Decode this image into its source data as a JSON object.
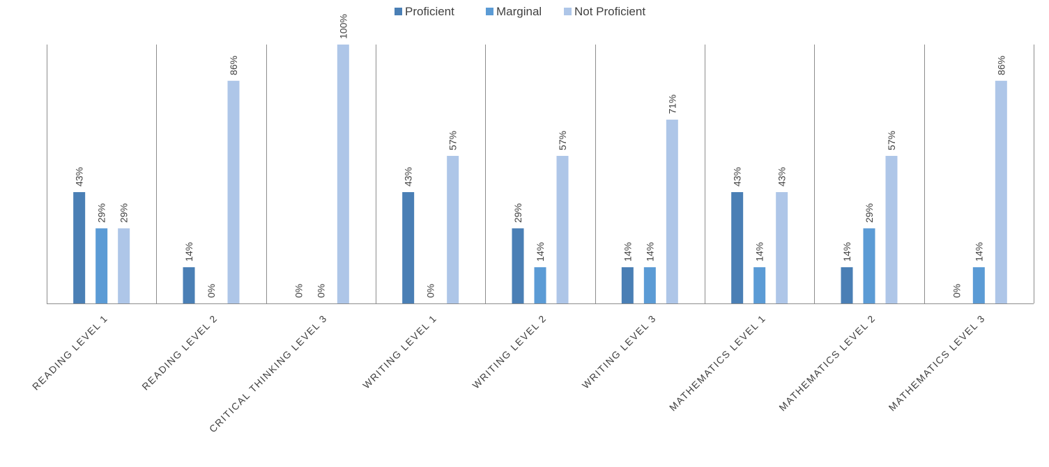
{
  "chart_data": {
    "type": "bar",
    "categories": [
      "READING LEVEL 1",
      "READING LEVEL 2",
      "CRITICAL THINKING LEVEL 3",
      "WRITING LEVEL 1",
      "WRITING LEVEL 2",
      "WRITING LEVEL 3",
      "MATHEMATICS LEVEL 1",
      "MATHEMATICS LEVEL 2",
      "MATHEMATICS LEVEL 3"
    ],
    "series": [
      {
        "name": "Proficient",
        "color": "#4a7fb5",
        "values": [
          43,
          14,
          0,
          43,
          29,
          14,
          43,
          14,
          0
        ]
      },
      {
        "name": "Marginal",
        "color": "#5b9bd5",
        "values": [
          29,
          0,
          0,
          0,
          14,
          14,
          14,
          29,
          14
        ]
      },
      {
        "name": "Not Proficient",
        "color": "#aec6e8",
        "values": [
          29,
          86,
          100,
          57,
          57,
          71,
          43,
          57,
          86
        ]
      }
    ],
    "value_suffix": "%",
    "ylim": [
      0,
      100
    ],
    "legend_position": "top-center",
    "grid": false,
    "category_separators": true
  }
}
